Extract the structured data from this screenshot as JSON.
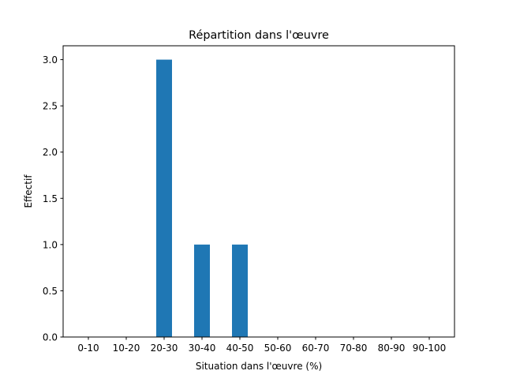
{
  "chart_data": {
    "type": "bar",
    "title": "Répartition dans l'œuvre",
    "xlabel": "Situation dans l'œuvre (%)",
    "ylabel": "Effectif",
    "categories": [
      "0-10",
      "10-20",
      "20-30",
      "30-40",
      "40-50",
      "50-60",
      "60-70",
      "70-80",
      "80-90",
      "90-100"
    ],
    "values": [
      0,
      0,
      3,
      1,
      1,
      0,
      0,
      0,
      0,
      0
    ],
    "ylim": [
      0,
      3.15
    ],
    "yticks": [
      "0.0",
      "0.5",
      "1.0",
      "1.5",
      "2.0",
      "2.5",
      "3.0"
    ],
    "grid": false,
    "bar_color": "#1f77b4"
  }
}
